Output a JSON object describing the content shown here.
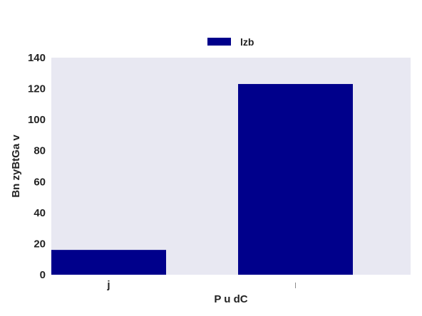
{
  "chart_data": {
    "type": "bar",
    "categories": [
      "j",
      "l"
    ],
    "series": [
      {
        "name": "lzb",
        "values": [
          16,
          123
        ]
      }
    ],
    "xlabel": "P u dC",
    "ylabel": "Bn zyBtGa v",
    "ylim": [
      0,
      140
    ],
    "yticks": [
      0,
      20,
      40,
      60,
      80,
      100,
      120,
      140
    ],
    "grid": false,
    "legend_position": "top-center",
    "colors": {
      "bar": "#00008b",
      "plot_background": "#e8e8f2",
      "text": "#222222"
    }
  }
}
